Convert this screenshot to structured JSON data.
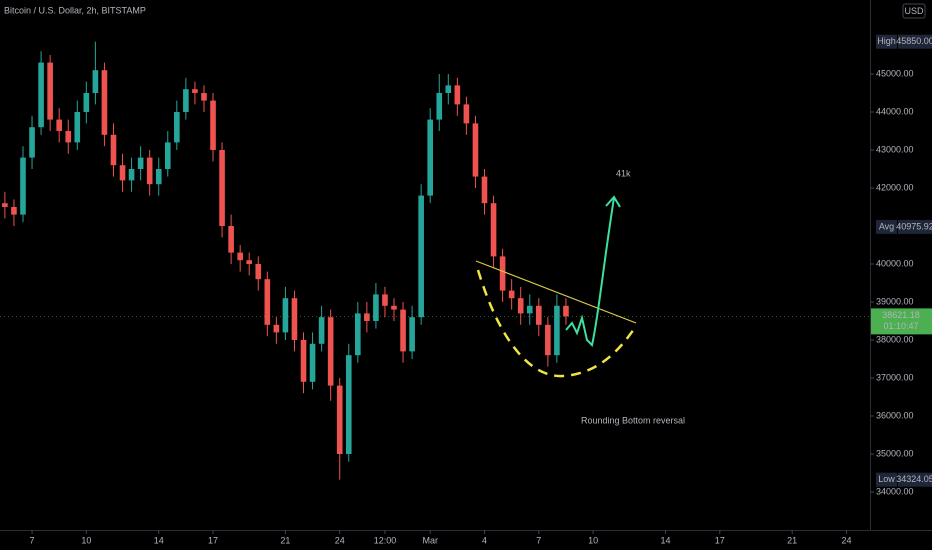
{
  "chart_data": {
    "type": "candlestick",
    "title": "Bitcoin / U.S. Dollar, 2h, BITSTAMP",
    "currency": "USD",
    "up_color": "#26a69a",
    "down_color": "#ef5350",
    "xlim": [
      5.23,
      53.3
    ],
    "ylim": [
      33000,
      46947
    ],
    "xticks": [
      7,
      10,
      14,
      17,
      21,
      24,
      {
        "value": 26.5,
        "label": "12:00"
      },
      {
        "value": 29,
        "label": "Mar"
      },
      {
        "value": 32,
        "label": "4"
      },
      {
        "value": 35,
        "label": "7"
      },
      {
        "value": 38,
        "label": "10"
      },
      {
        "value": 42,
        "label": "14"
      },
      {
        "value": 45,
        "label": "17"
      },
      {
        "value": 49,
        "label": "21"
      },
      {
        "value": 52,
        "label": "24"
      }
    ],
    "yticks": [
      {
        "value": 34000,
        "label": "34000.00"
      },
      {
        "value": 35000,
        "label": "35000.00"
      },
      {
        "value": 36000,
        "label": "36000.00"
      },
      {
        "value": 37000,
        "label": "37000.00"
      },
      {
        "value": 38000,
        "label": "38000.00"
      },
      {
        "value": 39000,
        "label": "39000.00"
      },
      {
        "value": 40000,
        "label": "40000.00"
      },
      {
        "value": 42000,
        "label": "42000.00"
      },
      {
        "value": 43000,
        "label": "43000.00"
      },
      {
        "value": 44000,
        "label": "44000.00"
      },
      {
        "value": 45000,
        "label": "45000.00"
      }
    ],
    "x": [
      5.5,
      6,
      6.5,
      7,
      7.5,
      8,
      8.5,
      9,
      9.5,
      10,
      10.5,
      11,
      11.5,
      12,
      12.5,
      13,
      13.5,
      14,
      14.5,
      15,
      15.5,
      16,
      16.5,
      17,
      17.5,
      18,
      18.5,
      19,
      19.5,
      20,
      20.5,
      21,
      21.5,
      22,
      22.5,
      23,
      23.5,
      24,
      24.5,
      25,
      25.5,
      26,
      26.5,
      27,
      27.5,
      28,
      28.5,
      29,
      29.5,
      30,
      30.5,
      31,
      31.5,
      32,
      32.5,
      33,
      33.5,
      34,
      34.5,
      35,
      35.5,
      36,
      36.5
    ],
    "open": [
      41600,
      41500,
      41300,
      42800,
      43600,
      45300,
      43800,
      43500,
      43200,
      44000,
      44500,
      45100,
      43400,
      42600,
      42200,
      42500,
      42800,
      42100,
      42500,
      43200,
      44000,
      44600,
      44500,
      44300,
      43000,
      41000,
      40300,
      40100,
      40000,
      39600,
      38400,
      38200,
      39100,
      38000,
      36900,
      37900,
      38600,
      36800,
      35000,
      37600,
      38700,
      38500,
      39200,
      38900,
      38800,
      37700,
      38600,
      41800,
      43800,
      44500,
      44700,
      44200,
      43700,
      42300,
      41600,
      40200,
      39300,
      39100,
      38700,
      38900,
      38400,
      37600,
      38900
    ],
    "high": [
      41900,
      41700,
      43100,
      43900,
      45600,
      45500,
      44100,
      43800,
      44300,
      44800,
      45850,
      45300,
      43700,
      42900,
      42800,
      43100,
      43000,
      42800,
      43500,
      44300,
      44900,
      44800,
      44700,
      44500,
      43200,
      41300,
      40500,
      40300,
      40200,
      39800,
      38600,
      39400,
      39300,
      38200,
      38200,
      38900,
      38800,
      37000,
      37900,
      39000,
      39000,
      39500,
      39400,
      39100,
      39000,
      38900,
      42100,
      44100,
      45000,
      45000,
      44900,
      44400,
      43900,
      42500,
      41800,
      40400,
      39600,
      39400,
      39200,
      39100,
      38600,
      39200,
      39100
    ],
    "low": [
      41200,
      41000,
      41100,
      42500,
      43400,
      43500,
      43200,
      42900,
      43000,
      43700,
      44200,
      43100,
      42300,
      41900,
      41900,
      42200,
      41800,
      41800,
      42300,
      43000,
      43800,
      44200,
      44000,
      42700,
      40700,
      40000,
      39800,
      39700,
      39300,
      38100,
      37900,
      38000,
      37700,
      36600,
      36700,
      37700,
      36400,
      34324.05,
      34800,
      37400,
      38200,
      38300,
      38600,
      38500,
      37400,
      37500,
      38400,
      41600,
      43500,
      44200,
      43900,
      43400,
      42000,
      41300,
      39900,
      39000,
      38800,
      38400,
      38400,
      38100,
      37300,
      37400,
      38400
    ],
    "close": [
      41500,
      41300,
      42800,
      43600,
      45300,
      43800,
      43500,
      43200,
      44000,
      44500,
      45100,
      43400,
      42600,
      42200,
      42500,
      42800,
      42100,
      42500,
      43200,
      44000,
      44600,
      44500,
      44300,
      43000,
      41000,
      40300,
      40100,
      40000,
      39600,
      38400,
      38200,
      39100,
      38000,
      36900,
      37900,
      38600,
      36800,
      35000,
      37600,
      38700,
      38500,
      39200,
      38900,
      38800,
      37700,
      38600,
      41800,
      43800,
      44500,
      44700,
      44200,
      43700,
      42300,
      41600,
      40200,
      39300,
      39100,
      38700,
      38900,
      38400,
      37600,
      38900,
      38621.18
    ],
    "price_markers": [
      {
        "name": "High",
        "value": 45850,
        "label": "45850.00"
      },
      {
        "name": "Avg",
        "value": 40975.92
      },
      {
        "name": "Low",
        "value": 34324.05
      }
    ],
    "last_price": {
      "value": 38621.18,
      "countdown": "01:10:47"
    },
    "annotations": [
      "41k",
      "Rounding Bottom  reversal"
    ]
  }
}
